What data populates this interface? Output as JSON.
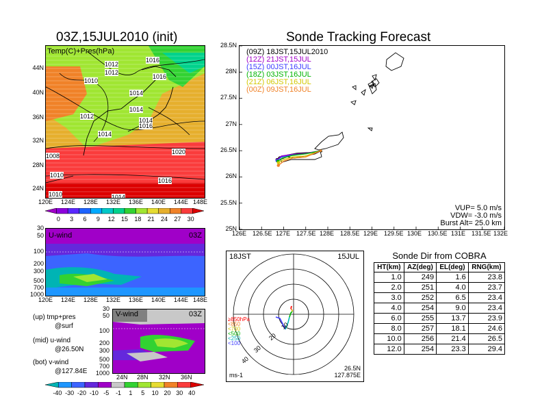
{
  "left_title": "03Z,15JUL2010 (init)",
  "right_title": "Sonde Tracking Forecast",
  "map_panel": {
    "label": "Temp(C)+Pres(hPa)",
    "lat_labels": [
      "44N",
      "40N",
      "36N",
      "32N",
      "28N",
      "24N"
    ],
    "lon_labels": [
      "120E",
      "124E",
      "128E",
      "132E",
      "136E",
      "140E",
      "144E",
      "148E"
    ],
    "isobar_labels": [
      "1012",
      "1012",
      "1016",
      "1010",
      "1016",
      "1014",
      "1012",
      "1014",
      "1014",
      "1016",
      "1014",
      "1020",
      "1008",
      "1016",
      "1010",
      "1010",
      "1014"
    ]
  },
  "temp_colorbar": {
    "labels": [
      "0",
      "3",
      "6",
      "9",
      "12",
      "15",
      "18",
      "21",
      "24",
      "27",
      "30"
    ],
    "colors": [
      "#a000c8",
      "#8c00dc",
      "#5a28ff",
      "#1e64ff",
      "#00aaff",
      "#00c8c8",
      "#00d28c",
      "#32d232",
      "#a0e632",
      "#e6dc32",
      "#e6af2d",
      "#f08228",
      "#fa3c3c",
      "#dc0000"
    ]
  },
  "u_panel": {
    "label": "U-wind",
    "time": "03Z",
    "p_labels": [
      "30",
      "50",
      "100",
      "200",
      "300",
      "500",
      "700",
      "1000"
    ],
    "lon_labels": [
      "120E",
      "124E",
      "128E",
      "132E",
      "136E",
      "140E",
      "144E",
      "148E"
    ]
  },
  "legend_notes": [
    "(up) tmp+pres",
    "@surf",
    "(mid) u-wind",
    "@26.50N",
    "(bot) v-wind",
    "@127.84E"
  ],
  "v_panel": {
    "label": "V-wind",
    "time": "03Z",
    "p_labels": [
      "30",
      "50",
      "100",
      "200",
      "300",
      "500",
      "700",
      "1000"
    ],
    "lat_labels": [
      "24N",
      "28N",
      "32N",
      "36N"
    ]
  },
  "wind_colorbar": {
    "labels": [
      "-40",
      "-30",
      "-20",
      "-10",
      "-5",
      "-1",
      "1",
      "5",
      "10",
      "20",
      "30",
      "40"
    ],
    "colors": [
      "#00b4b4",
      "#1e96ff",
      "#3c64ff",
      "#6428dc",
      "#a000c8",
      "#c8c8c8",
      "#32d232",
      "#a0e632",
      "#e6dc32",
      "#f08228",
      "#fa3c3c",
      "#dc0000"
    ]
  },
  "track_panel": {
    "lat_labels": [
      "28.5N",
      "28N",
      "27.5N",
      "27N",
      "26.5N",
      "26N",
      "25.5N",
      "25N"
    ],
    "lon_labels": [
      "126E",
      "126.5E",
      "127E",
      "127.5E",
      "128E",
      "128.5E",
      "129E",
      "129.5E",
      "130E",
      "130.5E",
      "131E",
      "131.5E",
      "132E"
    ],
    "legend": [
      {
        "text": "(09Z)  18JST,15JUL2010",
        "color": "#000000"
      },
      {
        "text": "(12Z)  21JST,15JUL",
        "color": "#a000c8"
      },
      {
        "text": "(15Z)  00JST,16JUL",
        "color": "#3c3cff"
      },
      {
        "text": "(18Z)  03JST,16JUL",
        "color": "#00b400"
      },
      {
        "text": "(21Z)  06JST,16JUL",
        "color": "#d2c800"
      },
      {
        "text": "(00Z)  09JST,16JUL",
        "color": "#f08228"
      }
    ],
    "params": [
      "VUP=  5.0  m/s",
      "VDW= -3.0  m/s",
      "Burst Alt=  25.0  km"
    ]
  },
  "polar_panel": {
    "time_label": "18JST",
    "date_label": "15JUL",
    "rings": [
      "10",
      "20",
      "30",
      "40"
    ],
    "pressure_legend": [
      {
        "text": "≥850hPa",
        "color": "#ff0000"
      },
      {
        "text": "<850",
        "color": "#f08228"
      },
      {
        "text": "<700",
        "color": "#d2c800"
      },
      {
        "text": "<500",
        "color": "#00b400"
      },
      {
        "text": "<250",
        "color": "#00b4b4"
      },
      {
        "text": "<100",
        "color": "#3c3cff"
      }
    ],
    "unit": "ms-1",
    "lat": "26.5N",
    "lon": "127.875E"
  },
  "table": {
    "title": "Sonde Dir from COBRA",
    "headers": [
      "HT(km)",
      "AZ(deg)",
      "EL(deg)",
      "RNG(km)"
    ],
    "rows": [
      [
        "1.0",
        "249",
        "1.6",
        "23.8"
      ],
      [
        "2.0",
        "251",
        "4.0",
        "23.7"
      ],
      [
        "3.0",
        "252",
        "6.5",
        "23.4"
      ],
      [
        "4.0",
        "254",
        "9.0",
        "23.4"
      ],
      [
        "6.0",
        "255",
        "13.7",
        "23.9"
      ],
      [
        "8.0",
        "257",
        "18.1",
        "24.6"
      ],
      [
        "10.0",
        "256",
        "21.4",
        "26.5"
      ],
      [
        "12.0",
        "254",
        "23.3",
        "29.4"
      ]
    ]
  },
  "chart_data": [
    {
      "type": "line",
      "title": "Sonde Tracking Forecast",
      "xlabel": "",
      "ylabel": "",
      "xlim": [
        126,
        132
      ],
      "ylim": [
        25,
        28.5
      ],
      "series": [
        {
          "name": "(09Z)  18JST,15JUL2010",
          "color": "#000000",
          "x": [
            126.85,
            126.9,
            127.1,
            127.3,
            127.5,
            127.7,
            127.85
          ],
          "y": [
            26.33,
            26.38,
            26.42,
            26.45,
            26.46,
            26.47,
            26.49
          ]
        },
        {
          "name": "(12Z)  21JST,15JUL",
          "color": "#a000c8",
          "x": [
            126.85,
            126.95,
            127.2,
            127.5,
            127.84
          ],
          "y": [
            26.32,
            26.4,
            26.43,
            26.45,
            26.5
          ]
        },
        {
          "name": "(15Z)  00JST,16JUL",
          "color": "#3c3cff",
          "x": [
            126.85,
            126.95,
            127.2,
            127.5,
            127.84
          ],
          "y": [
            26.31,
            26.38,
            26.42,
            26.44,
            26.5
          ]
        },
        {
          "name": "(18Z)  03JST,16JUL",
          "color": "#00b400",
          "x": [
            126.87,
            126.97,
            127.2,
            127.5,
            127.84
          ],
          "y": [
            26.3,
            26.36,
            26.41,
            26.44,
            26.5
          ]
        },
        {
          "name": "(21Z)  06JST,16JUL",
          "color": "#d2c800",
          "x": [
            126.88,
            127.0,
            127.2,
            127.5,
            127.84
          ],
          "y": [
            26.27,
            26.33,
            26.38,
            26.4,
            26.5
          ]
        },
        {
          "name": "(00Z)  09JST,16JUL",
          "color": "#f08228",
          "x": [
            126.88,
            127.0,
            127.2,
            127.5,
            127.84
          ],
          "y": [
            26.22,
            26.3,
            26.36,
            26.38,
            26.5
          ]
        }
      ]
    },
    {
      "type": "table",
      "title": "Sonde Dir from COBRA",
      "columns": [
        "HT(km)",
        "AZ(deg)",
        "EL(deg)",
        "RNG(km)"
      ],
      "rows": [
        [
          1.0,
          249,
          1.6,
          23.8
        ],
        [
          2.0,
          251,
          4.0,
          23.7
        ],
        [
          3.0,
          252,
          6.5,
          23.4
        ],
        [
          4.0,
          254,
          9.0,
          23.4
        ],
        [
          6.0,
          255,
          13.7,
          23.9
        ],
        [
          8.0,
          257,
          18.1,
          24.6
        ],
        [
          10.0,
          256,
          21.4,
          26.5
        ],
        [
          12.0,
          254,
          23.3,
          29.4
        ]
      ]
    }
  ]
}
